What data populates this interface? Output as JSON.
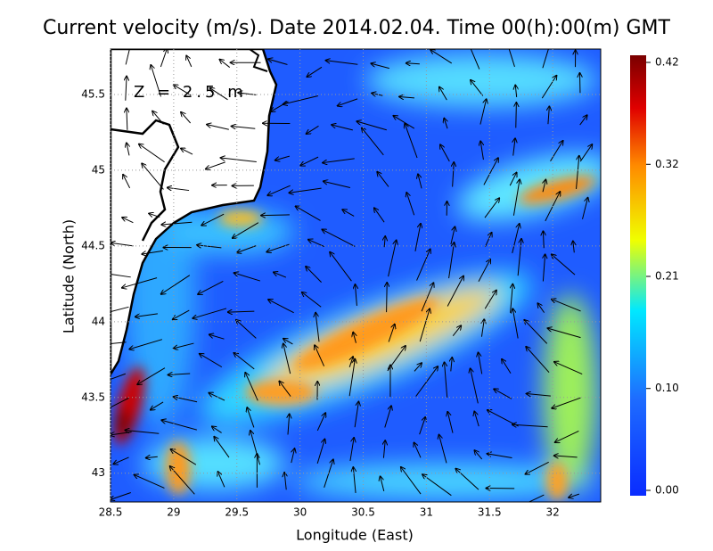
{
  "map": {
    "title": "Current velocity (m/s). Date 2014.02.04. Time 00(h):00(m) GMT",
    "annotation": "Z = 2.5 m",
    "x_label": "Longitude (East)",
    "y_label": "Latitude (North)",
    "xlim": [
      28.5,
      32.38
    ],
    "xticks": [
      28.5,
      29,
      29.5,
      30,
      30.5,
      31,
      31.5,
      32
    ],
    "ylim": [
      42.81,
      45.8
    ],
    "yticks": [
      43,
      43.5,
      44,
      44.5,
      45,
      45.5
    ],
    "grid": true,
    "colorbar": {
      "lim": [
        0,
        0.42
      ],
      "ticks": [
        {
          "value": 0,
          "label": "0.00"
        },
        {
          "value": 0.1,
          "label": "0.10"
        },
        0.21,
        0.32,
        0.42
      ]
    }
  }
}
